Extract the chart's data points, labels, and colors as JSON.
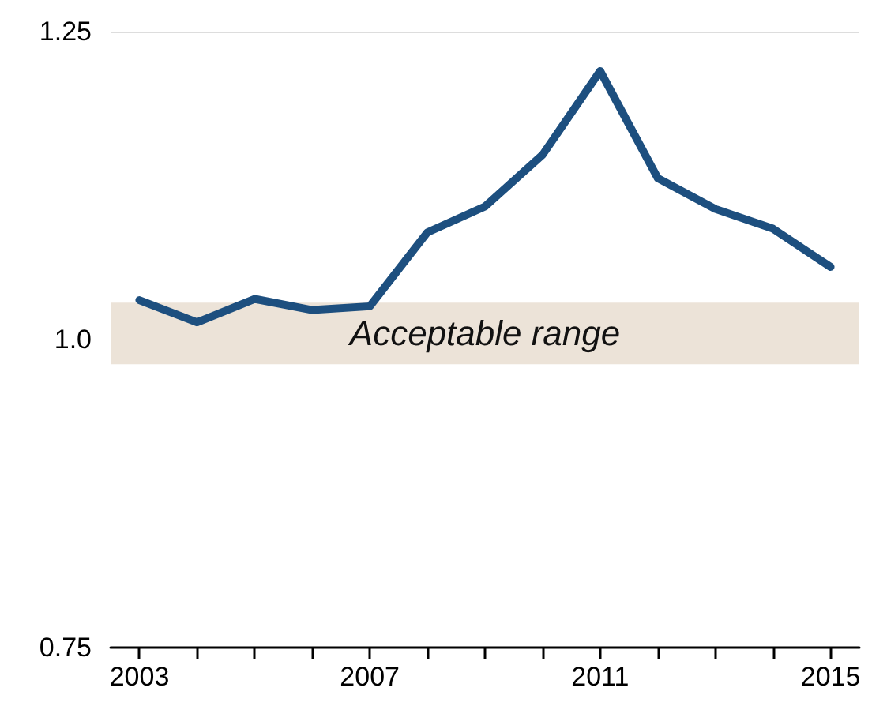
{
  "chart_data": {
    "type": "line",
    "x": [
      2003,
      2004,
      2005,
      2006,
      2007,
      2008,
      2009,
      2010,
      2011,
      2012,
      2013,
      2014,
      2015
    ],
    "series": [
      {
        "color": "#1d4f7f",
        "values": [
          1.032,
          1.014,
          1.033,
          1.024,
          1.027,
          1.087,
          1.108,
          1.15,
          1.218,
          1.131,
          1.106,
          1.09,
          1.059
        ]
      }
    ],
    "xlim": [
      2002.5,
      2015.5
    ],
    "xticks": [
      2003,
      {
        "value": 2004,
        "label": null
      },
      {
        "value": 2005,
        "label": null
      },
      {
        "value": 2006,
        "label": null
      },
      2007,
      {
        "value": 2008,
        "label": null
      },
      {
        "value": 2009,
        "label": null
      },
      {
        "value": 2010,
        "label": null
      },
      2011,
      {
        "value": 2012,
        "label": null
      },
      {
        "value": 2013,
        "label": null
      },
      {
        "value": 2014,
        "label": null
      },
      2015
    ],
    "ylim": [
      0.75,
      1.25
    ],
    "yticks": [
      0.75,
      {
        "value": 1,
        "label": "1.0"
      },
      1.25
    ],
    "bands": [
      {
        "axis": "y",
        "from": 0.98,
        "to": 1.03,
        "label": "Acceptable range",
        "color": "#ece3d8"
      }
    ],
    "ref_lines": [
      {
        "axis": "y",
        "value": 1.25,
        "label": null,
        "color": "#dddddd",
        "line_style": "solid"
      }
    ],
    "marker": "none",
    "line_style": "solid"
  }
}
